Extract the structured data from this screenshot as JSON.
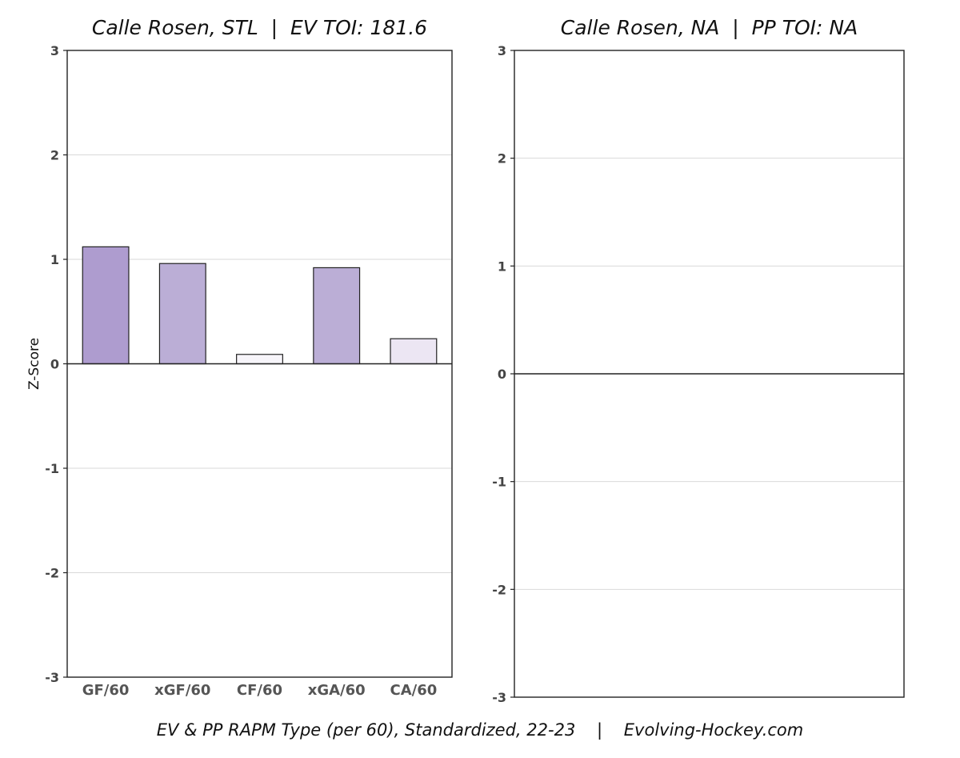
{
  "chart_data": [
    {
      "type": "bar",
      "title": "Calle Rosen, STL  |  EV TOI: 181.6",
      "ylabel": "Z-Score",
      "xlabel": "",
      "ylim": [
        -3,
        3
      ],
      "yticks": [
        3,
        2,
        1,
        0,
        -1,
        -2,
        -3
      ],
      "categories": [
        "GF/60",
        "xGF/60",
        "CF/60",
        "xGA/60",
        "CA/60"
      ],
      "values": [
        1.12,
        0.96,
        0.09,
        0.92,
        0.24
      ],
      "colors": [
        "#ae9ccf",
        "#bbaed6",
        "#f7f5fa",
        "#bbaed6",
        "#ece6f3"
      ],
      "grid": true
    },
    {
      "type": "bar",
      "title": "Calle Rosen, NA  |  PP TOI: NA",
      "ylabel": "",
      "xlabel": "",
      "ylim": [
        -3,
        3
      ],
      "yticks": [
        3,
        2,
        1,
        0,
        -1,
        -2,
        -3
      ],
      "categories": [],
      "values": [],
      "grid": true
    }
  ],
  "footer": "EV & PP RAPM Type (per 60), Standardized, 22-23    |    Evolving-Hockey.com"
}
